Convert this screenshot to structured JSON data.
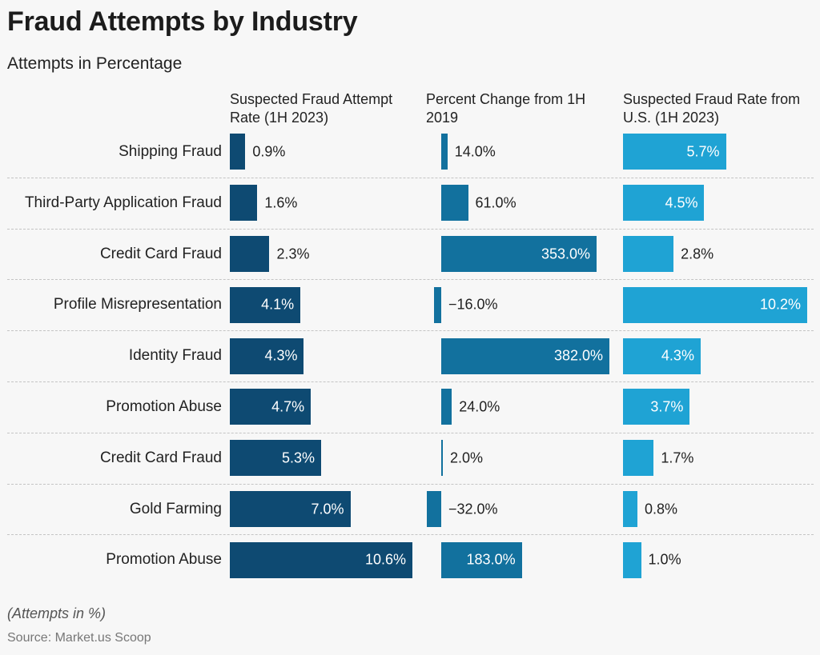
{
  "header": {
    "title": "Fraud Attempts by Industry",
    "subtitle": "Attempts in Percentage"
  },
  "footer": {
    "note": "(Attempts in %)",
    "source": "Source: Market.us Scoop"
  },
  "colors": {
    "series1": "#0e4a72",
    "series2": "#12719e",
    "series3": "#1fa3d4"
  },
  "chart_data": {
    "type": "bar",
    "orientation": "horizontal",
    "title": "Fraud Attempts by Industry",
    "subtitle": "Attempts in Percentage",
    "categories": [
      "Shipping Fraud",
      "Third-Party Application Fraud",
      "Credit Card Fraud",
      "Profile Misrepresentation",
      "Identity Fraud",
      "Promotion Abuse",
      "Credit Card Fraud",
      "Gold Farming",
      "Promotion Abuse"
    ],
    "series": [
      {
        "name": "Suspected Fraud Attempt Rate (1H 2023)",
        "values": [
          0.9,
          1.6,
          2.3,
          4.1,
          4.3,
          4.7,
          5.3,
          7.0,
          10.6
        ],
        "labels": [
          "0.9%",
          "1.6%",
          "2.3%",
          "4.1%",
          "4.3%",
          "4.7%",
          "5.3%",
          "7.0%",
          "10.6%"
        ],
        "range": [
          0,
          10.6
        ]
      },
      {
        "name": "Percent Change from 1H 2019",
        "values": [
          14.0,
          61.0,
          353.0,
          -16.0,
          382.0,
          24.0,
          2.0,
          -32.0,
          183.0
        ],
        "labels": [
          "14.0%",
          "61.0%",
          "353.0%",
          "−16.0%",
          "382.0%",
          "24.0%",
          "2.0%",
          "−32.0%",
          "183.0%"
        ],
        "range": [
          -32,
          382
        ]
      },
      {
        "name": "Suspected Fraud Rate from U.S. (1H 2023)",
        "values": [
          5.7,
          4.5,
          2.8,
          10.2,
          4.3,
          3.7,
          1.7,
          0.8,
          1.0
        ],
        "labels": [
          "5.7%",
          "4.5%",
          "2.8%",
          "10.2%",
          "4.3%",
          "3.7%",
          "1.7%",
          "0.8%",
          "1.0%"
        ],
        "range": [
          0,
          10.2
        ]
      }
    ]
  }
}
